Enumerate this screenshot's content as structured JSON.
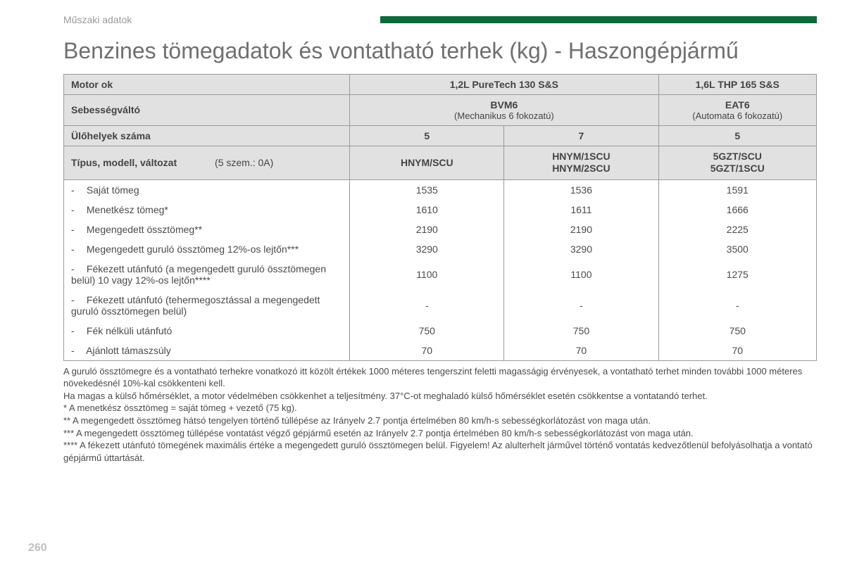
{
  "meta": {
    "section_label": "Műszaki adatok",
    "title": "Benzines tömegadatok és vontatható terhek (kg) - Haszongépjármű",
    "page_number": "260",
    "colors": {
      "accent_green": "#096a3a",
      "header_bg": "#e1e1e1",
      "border": "#9a9a9a",
      "text": "#4a4a4a",
      "muted": "#9a9a9a",
      "page_num": "#bfbfbf"
    }
  },
  "table": {
    "head": {
      "motor_label": "Motor ok",
      "motor_col12": "1,2L PureTech 130 S&S",
      "motor_col3": "1,6L THP 165 S&S",
      "gearbox_label": "Sebességváltó",
      "gearbox_col12_main": "BVM6",
      "gearbox_col12_sub": "(Mechanikus 6 fokozatú)",
      "gearbox_col3_main": "EAT6",
      "gearbox_col3_sub": "(Automata 6 fokozatú)",
      "seats_label": "Ülőhelyek száma",
      "seats": [
        "5",
        "7",
        "5"
      ],
      "type_label": "Típus, modell, változat",
      "type_extra": "(5 szem.: 0A)",
      "type_c1": "HNYM/SCU",
      "type_c2_l1": "HNYM/1SCU",
      "type_c2_l2": "HNYM/2SCU",
      "type_c3_l1": "5GZT/SCU",
      "type_c3_l2": "5GZT/1SCU"
    },
    "rows": [
      {
        "label": "Saját tömeg",
        "v": [
          "1535",
          "1536",
          "1591"
        ]
      },
      {
        "label": "Menetkész tömeg*",
        "v": [
          "1610",
          "1611",
          "1666"
        ]
      },
      {
        "label": "Megengedett össztömeg**",
        "v": [
          "2190",
          "2190",
          "2225"
        ]
      },
      {
        "label": "Megengedett guruló össztömeg 12%-os lejtőn***",
        "v": [
          "3290",
          "3290",
          "3500"
        ]
      },
      {
        "label": "Fékezett utánfutó (a megengedett guruló össztömegen belül) 10 vagy 12%-os lejtőn****",
        "v": [
          "1100",
          "1100",
          "1275"
        ]
      },
      {
        "label": "Fékezett utánfutó (tehermegosztással a megengedett guruló össztömegen belül)",
        "v": [
          "-",
          "-",
          "-"
        ]
      },
      {
        "label": "Fék nélküli utánfutó",
        "v": [
          "750",
          "750",
          "750"
        ]
      },
      {
        "label": "Ajánlott támaszsúly",
        "v": [
          "70",
          "70",
          "70"
        ]
      }
    ]
  },
  "notes": [
    "A guruló össztömegre és a vontatható terhekre vonatkozó itt közölt értékek 1000 méteres tengerszint feletti magasságig érvényesek, a vontatható terhet minden további 1000 méteres növekedésnél 10%-kal csökkenteni kell.",
    "Ha magas a külső hőmérséklet, a motor védelmében csökkenhet a teljesítmény. 37°C-ot meghaladó külső hőmérséklet esetén csökkentse a vontatandó terhet.",
    "* A menetkész össztömeg = saját tömeg + vezető (75 kg).",
    "** A megengedett össztömeg hátsó tengelyen történő túllépése az Irányelv 2.7 pontja értelmében 80 km/h-s sebességkorlátozást von maga után.",
    "*** A megengedett össztömeg túllépése vontatást végző gépjármű esetén az Irányelv 2.7 pontja értelmében 80 km/h-s sebességkorlátozást von maga után.",
    "**** A fékezett utánfutó tömegének maximális értéke a megengedett guruló össztömegen belül. Figyelem! Az alulterhelt járművel történő vontatás kedvezőtlenül befolyásolhatja a vontató gépjármű úttartását."
  ]
}
